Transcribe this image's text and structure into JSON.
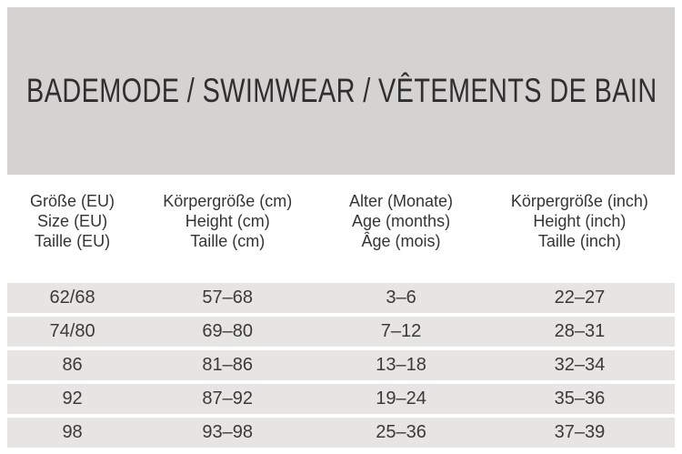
{
  "page": {
    "title": "BADEMODE / SWIMWEAR / VÊTEMENTS DE BAIN"
  },
  "colors": {
    "page_bg": "#ffffff",
    "banner_bg": "#d4d3d1",
    "row_bg": "#e6e5e3",
    "text": "#363636"
  },
  "table": {
    "columns": [
      {
        "lines": [
          "Größe (EU)",
          "Size (EU)",
          "Taille (EU)"
        ]
      },
      {
        "lines": [
          "Körpergröße (cm)",
          "Height (cm)",
          "Taille (cm)"
        ]
      },
      {
        "lines": [
          "Alter (Monate)",
          "Age (months)",
          "Âge (mois)"
        ]
      },
      {
        "lines": [
          "Körpergröße (inch)",
          "Height (inch)",
          "Taille (inch)"
        ]
      }
    ],
    "rows": [
      [
        "62/68",
        "57–68",
        "3–6",
        "22–27"
      ],
      [
        "74/80",
        "69–80",
        "7–12",
        "28–31"
      ],
      [
        "86",
        "81–86",
        "13–18",
        "32–34"
      ],
      [
        "92",
        "87–92",
        "19–24",
        "35–36"
      ],
      [
        "98",
        "93–98",
        "25–36",
        "37–39"
      ]
    ]
  }
}
